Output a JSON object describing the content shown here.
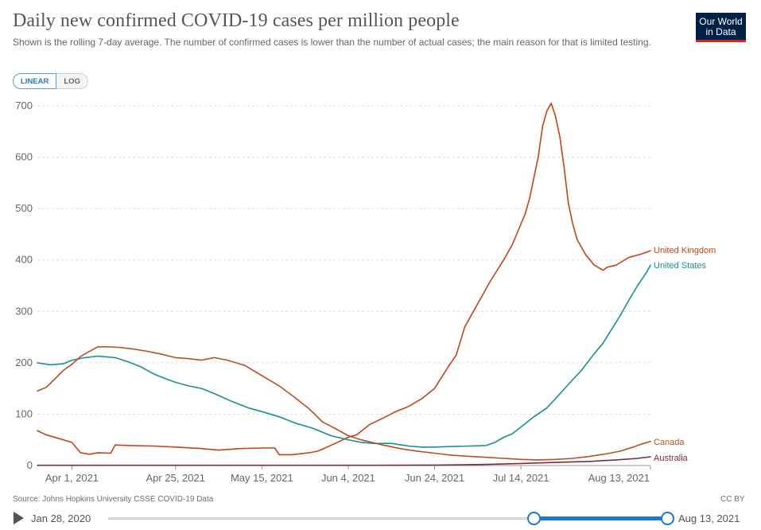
{
  "header": {
    "title": "Daily new confirmed COVID-19 cases per million people",
    "subtitle": "Shown is the rolling 7-day average. The number of confirmed cases is lower than the number of actual cases; the main reason for that is limited testing.",
    "logo_line1": "Our World",
    "logo_line2": "in Data"
  },
  "controls": {
    "linear_label": "LINEAR",
    "log_label": "LOG",
    "active_scale": "linear"
  },
  "footer": {
    "source": "Source: Johns Hopkins University CSSE COVID-19 Data",
    "license": "CC BY"
  },
  "timeline": {
    "start_label": "Jan 28, 2020",
    "end_label": "Aug 13, 2021",
    "selected_start": "2021-03-24",
    "selected_end": "2021-08-13"
  },
  "colors": {
    "united_kingdom": "#c0441d",
    "united_states": "#18908e",
    "canada": "#b8501f",
    "australia": "#7d2a3c",
    "accent": "#1679d3",
    "gridline": "#dddddd"
  },
  "chart_data": {
    "type": "line",
    "title": "Daily new confirmed COVID-19 cases per million people",
    "xlabel": "",
    "ylabel": "",
    "x_range": [
      "2021-03-24",
      "2021-08-13"
    ],
    "ylim": [
      0,
      700
    ],
    "y_ticks": [
      0,
      100,
      200,
      300,
      400,
      500,
      600,
      700
    ],
    "x_ticks": [
      {
        "date": "2021-04-01",
        "label": "Apr 1, 2021"
      },
      {
        "date": "2021-04-25",
        "label": "Apr 25, 2021"
      },
      {
        "date": "2021-05-15",
        "label": "May 15, 2021"
      },
      {
        "date": "2021-06-04",
        "label": "Jun 4, 2021"
      },
      {
        "date": "2021-06-24",
        "label": "Jun 24, 2021"
      },
      {
        "date": "2021-07-14",
        "label": "Jul 14, 2021"
      },
      {
        "date": "2021-08-13",
        "label": "Aug 13, 2021"
      }
    ],
    "grid": "horizontal-dashed",
    "legend": "end-labels-right",
    "series": [
      {
        "name": "United Kingdom",
        "color": "#c0441d",
        "points": [
          [
            "2021-03-24",
            68
          ],
          [
            "2021-03-26",
            60
          ],
          [
            "2021-03-30",
            50
          ],
          [
            "2021-04-01",
            45
          ],
          [
            "2021-04-03",
            25
          ],
          [
            "2021-04-05",
            22
          ],
          [
            "2021-04-07",
            25
          ],
          [
            "2021-04-10",
            24
          ],
          [
            "2021-04-11",
            40
          ],
          [
            "2021-04-14",
            39
          ],
          [
            "2021-04-20",
            38
          ],
          [
            "2021-04-25",
            36
          ],
          [
            "2021-05-01",
            33
          ],
          [
            "2021-05-05",
            30
          ],
          [
            "2021-05-10",
            33
          ],
          [
            "2021-05-15",
            34
          ],
          [
            "2021-05-18",
            34
          ],
          [
            "2021-05-19",
            21
          ],
          [
            "2021-05-22",
            21
          ],
          [
            "2021-05-26",
            25
          ],
          [
            "2021-05-28",
            28
          ],
          [
            "2021-06-01",
            43
          ],
          [
            "2021-06-04",
            55
          ],
          [
            "2021-06-06",
            60
          ],
          [
            "2021-06-09",
            80
          ],
          [
            "2021-06-12",
            92
          ],
          [
            "2021-06-15",
            105
          ],
          [
            "2021-06-18",
            115
          ],
          [
            "2021-06-21",
            130
          ],
          [
            "2021-06-24",
            150
          ],
          [
            "2021-06-27",
            190
          ],
          [
            "2021-06-29",
            215
          ],
          [
            "2021-07-01",
            270
          ],
          [
            "2021-07-03",
            300
          ],
          [
            "2021-07-05",
            330
          ],
          [
            "2021-07-07",
            360
          ],
          [
            "2021-07-10",
            400
          ],
          [
            "2021-07-12",
            430
          ],
          [
            "2021-07-14",
            470
          ],
          [
            "2021-07-15",
            490
          ],
          [
            "2021-07-16",
            520
          ],
          [
            "2021-07-17",
            560
          ],
          [
            "2021-07-18",
            600
          ],
          [
            "2021-07-19",
            660
          ],
          [
            "2021-07-20",
            690
          ],
          [
            "2021-07-21",
            705
          ],
          [
            "2021-07-22",
            680
          ],
          [
            "2021-07-23",
            640
          ],
          [
            "2021-07-24",
            580
          ],
          [
            "2021-07-25",
            510
          ],
          [
            "2021-07-26",
            470
          ],
          [
            "2021-07-27",
            440
          ],
          [
            "2021-07-29",
            410
          ],
          [
            "2021-07-31",
            390
          ],
          [
            "2021-08-02",
            380
          ],
          [
            "2021-08-03",
            386
          ],
          [
            "2021-08-05",
            390
          ],
          [
            "2021-08-08",
            405
          ],
          [
            "2021-08-11",
            412
          ],
          [
            "2021-08-13",
            418
          ]
        ]
      },
      {
        "name": "United States",
        "color": "#18908e",
        "points": [
          [
            "2021-03-24",
            200
          ],
          [
            "2021-03-27",
            196
          ],
          [
            "2021-03-30",
            198
          ],
          [
            "2021-04-01",
            205
          ],
          [
            "2021-04-04",
            210
          ],
          [
            "2021-04-07",
            213
          ],
          [
            "2021-04-11",
            210
          ],
          [
            "2021-04-14",
            202
          ],
          [
            "2021-04-17",
            192
          ],
          [
            "2021-04-20",
            178
          ],
          [
            "2021-04-23",
            168
          ],
          [
            "2021-04-25",
            162
          ],
          [
            "2021-04-28",
            155
          ],
          [
            "2021-05-01",
            150
          ],
          [
            "2021-05-04",
            140
          ],
          [
            "2021-05-08",
            125
          ],
          [
            "2021-05-12",
            112
          ],
          [
            "2021-05-15",
            105
          ],
          [
            "2021-05-19",
            95
          ],
          [
            "2021-05-23",
            82
          ],
          [
            "2021-05-27",
            72
          ],
          [
            "2021-05-31",
            58
          ],
          [
            "2021-06-04",
            50
          ],
          [
            "2021-06-07",
            45
          ],
          [
            "2021-06-10",
            43
          ],
          [
            "2021-06-14",
            43
          ],
          [
            "2021-06-18",
            38
          ],
          [
            "2021-06-21",
            36
          ],
          [
            "2021-06-24",
            36
          ],
          [
            "2021-06-28",
            37
          ],
          [
            "2021-07-02",
            38
          ],
          [
            "2021-07-06",
            39
          ],
          [
            "2021-07-08",
            45
          ],
          [
            "2021-07-10",
            55
          ],
          [
            "2021-07-12",
            62
          ],
          [
            "2021-07-14",
            75
          ],
          [
            "2021-07-17",
            95
          ],
          [
            "2021-07-20",
            112
          ],
          [
            "2021-07-22",
            130
          ],
          [
            "2021-07-25",
            158
          ],
          [
            "2021-07-28",
            185
          ],
          [
            "2021-07-31",
            218
          ],
          [
            "2021-08-02",
            238
          ],
          [
            "2021-08-04",
            265
          ],
          [
            "2021-08-06",
            292
          ],
          [
            "2021-08-08",
            322
          ],
          [
            "2021-08-10",
            350
          ],
          [
            "2021-08-12",
            375
          ],
          [
            "2021-08-13",
            390
          ]
        ]
      },
      {
        "name": "Canada",
        "color": "#b8501f",
        "points": [
          [
            "2021-03-24",
            145
          ],
          [
            "2021-03-26",
            152
          ],
          [
            "2021-03-28",
            168
          ],
          [
            "2021-03-30",
            185
          ],
          [
            "2021-04-01",
            197
          ],
          [
            "2021-04-03",
            212
          ],
          [
            "2021-04-05",
            222
          ],
          [
            "2021-04-07",
            231
          ],
          [
            "2021-04-09",
            231
          ],
          [
            "2021-04-12",
            230
          ],
          [
            "2021-04-15",
            227
          ],
          [
            "2021-04-18",
            223
          ],
          [
            "2021-04-21",
            218
          ],
          [
            "2021-04-25",
            210
          ],
          [
            "2021-04-28",
            208
          ],
          [
            "2021-05-01",
            205
          ],
          [
            "2021-05-04",
            210
          ],
          [
            "2021-05-07",
            205
          ],
          [
            "2021-05-11",
            195
          ],
          [
            "2021-05-15",
            175
          ],
          [
            "2021-05-19",
            155
          ],
          [
            "2021-05-23",
            130
          ],
          [
            "2021-05-26",
            110
          ],
          [
            "2021-05-29",
            85
          ],
          [
            "2021-06-01",
            72
          ],
          [
            "2021-06-04",
            58
          ],
          [
            "2021-06-07",
            50
          ],
          [
            "2021-06-12",
            40
          ],
          [
            "2021-06-16",
            33
          ],
          [
            "2021-06-20",
            28
          ],
          [
            "2021-06-24",
            24
          ],
          [
            "2021-06-28",
            20
          ],
          [
            "2021-07-02",
            18
          ],
          [
            "2021-07-06",
            16
          ],
          [
            "2021-07-10",
            14
          ],
          [
            "2021-07-14",
            12
          ],
          [
            "2021-07-18",
            11
          ],
          [
            "2021-07-22",
            12
          ],
          [
            "2021-07-26",
            14
          ],
          [
            "2021-07-30",
            18
          ],
          [
            "2021-08-03",
            23
          ],
          [
            "2021-08-06",
            28
          ],
          [
            "2021-08-09",
            36
          ],
          [
            "2021-08-11",
            42
          ],
          [
            "2021-08-13",
            47
          ]
        ]
      },
      {
        "name": "Australia",
        "color": "#7d2a3c",
        "points": [
          [
            "2021-03-24",
            0.5
          ],
          [
            "2021-04-15",
            0.4
          ],
          [
            "2021-05-15",
            0.4
          ],
          [
            "2021-06-10",
            0.5
          ],
          [
            "2021-06-25",
            1
          ],
          [
            "2021-07-05",
            2
          ],
          [
            "2021-07-14",
            4
          ],
          [
            "2021-07-22",
            6
          ],
          [
            "2021-07-30",
            8
          ],
          [
            "2021-08-05",
            11
          ],
          [
            "2021-08-10",
            14
          ],
          [
            "2021-08-13",
            17
          ]
        ]
      }
    ]
  }
}
